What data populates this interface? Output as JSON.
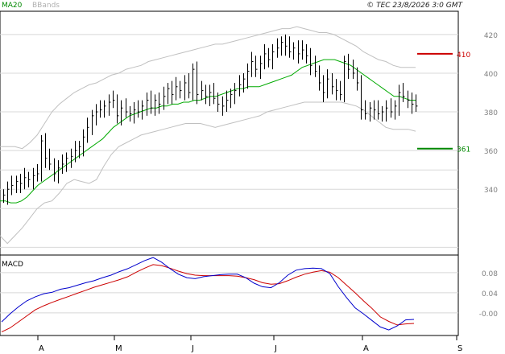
{
  "header": {
    "indicator_ma": "MA20",
    "indicator_bb": "BBands",
    "copyright": "© TEC 23/8/2026 3:0 GMT"
  },
  "colors": {
    "price_bar": "#000000",
    "ma": "#00aa00",
    "bbands": "#c0c0c0",
    "resistance": "#cc0000",
    "support": "#008800",
    "macd_line": "#0000cc",
    "macd_signal": "#cc0000",
    "grid": "#d8d8d8",
    "axis_text": "#808080"
  },
  "chart_data": [
    {
      "type": "line",
      "panel": "price",
      "description_note": "",
      "y_ticks": [
        340,
        360,
        380,
        400,
        420
      ],
      "ylim": [
        306,
        432
      ],
      "x_ticks": [
        "A",
        "M",
        "J",
        "J",
        "A",
        "S"
      ],
      "levels": [
        {
          "label": "410",
          "value": 410,
          "color": "resistance"
        },
        {
          "label": "361",
          "value": 361,
          "color": "support"
        }
      ],
      "series": [
        {
          "name": "price",
          "style": "ohlc",
          "close": [
            337,
            340,
            342,
            344,
            343,
            346,
            345,
            347,
            348,
            365,
            356,
            353,
            348,
            351,
            353,
            356,
            357,
            360,
            362,
            367,
            372,
            378,
            380,
            381,
            383,
            385,
            386,
            378,
            382,
            380,
            379,
            381,
            380,
            383,
            386,
            382,
            386,
            384,
            388,
            392,
            389,
            393,
            391,
            395,
            390,
            402,
            389,
            391,
            388,
            390,
            387,
            384,
            383,
            386,
            389,
            391,
            394,
            397,
            401,
            406,
            402,
            405,
            410,
            407,
            411,
            413,
            416,
            414,
            411,
            413,
            410,
            412,
            409,
            404,
            401,
            395,
            390,
            397,
            393,
            391,
            389,
            406,
            402,
            400,
            395,
            381,
            379,
            382,
            381,
            379,
            380,
            382,
            380,
            383,
            390,
            388,
            386,
            384,
            383
          ]
        },
        {
          "name": "MA20",
          "values": [
            334,
            334,
            333,
            333,
            334,
            336,
            339,
            342,
            344,
            346,
            348,
            350,
            352,
            354,
            356,
            358,
            360,
            362,
            364,
            366,
            369,
            372,
            374,
            376,
            378,
            379,
            380,
            381,
            382,
            382,
            383,
            383,
            384,
            384,
            385,
            385,
            386,
            386,
            387,
            388,
            388,
            389,
            390,
            391,
            392,
            392,
            393,
            393,
            393,
            394,
            395,
            396,
            397,
            398,
            399,
            401,
            403,
            404,
            405,
            406,
            407,
            407,
            407,
            406,
            405,
            404,
            402,
            400,
            398,
            396,
            394,
            392,
            390,
            388,
            388,
            387,
            386,
            386
          ]
        },
        {
          "name": "BBands",
          "upper": [
            362,
            362,
            362,
            361,
            364,
            368,
            374,
            380,
            384,
            387,
            390,
            392,
            394,
            395,
            397,
            399,
            400,
            402,
            403,
            404,
            406,
            407,
            408,
            409,
            410,
            411,
            412,
            413,
            414,
            415,
            415,
            416,
            417,
            418,
            419,
            420,
            421,
            422,
            423,
            423,
            424,
            423,
            422,
            421,
            421,
            420,
            418,
            416,
            414,
            411,
            409,
            407,
            406,
            404,
            403,
            403,
            403
          ],
          "lower": [
            316,
            312,
            316,
            320,
            325,
            330,
            333,
            334,
            338,
            343,
            345,
            344,
            343,
            345,
            352,
            358,
            362,
            364,
            366,
            368,
            369,
            370,
            371,
            372,
            373,
            374,
            374,
            374,
            373,
            372,
            373,
            374,
            375,
            376,
            377,
            378,
            380,
            381,
            382,
            383,
            384,
            385,
            385,
            385,
            385,
            385,
            385,
            384,
            383,
            381,
            378,
            375,
            372,
            371,
            371,
            371,
            370
          ]
        }
      ]
    },
    {
      "type": "line",
      "title": "MACD",
      "panel": "macd",
      "y_ticks": [
        "0.08",
        "0.04",
        "-0.00"
      ],
      "ylim": [
        -0.045,
        0.115
      ],
      "series": [
        {
          "name": "MACD",
          "values": [
            -0.018,
            -0.002,
            0.012,
            0.024,
            0.032,
            0.038,
            0.041,
            0.047,
            0.05,
            0.055,
            0.06,
            0.064,
            0.07,
            0.075,
            0.082,
            0.088,
            0.096,
            0.104,
            0.11,
            0.101,
            0.088,
            0.077,
            0.07,
            0.068,
            0.072,
            0.074,
            0.076,
            0.077,
            0.077,
            0.07,
            0.059,
            0.052,
            0.05,
            0.06,
            0.075,
            0.085,
            0.088,
            0.089,
            0.088,
            0.078,
            0.052,
            0.03,
            0.01,
            -0.002,
            -0.015,
            -0.028,
            -0.034,
            -0.026,
            -0.014,
            -0.013
          ]
        },
        {
          "name": "Signal",
          "values": [
            -0.038,
            -0.03,
            -0.018,
            -0.006,
            0.006,
            0.014,
            0.021,
            0.027,
            0.033,
            0.039,
            0.045,
            0.051,
            0.056,
            0.061,
            0.066,
            0.072,
            0.081,
            0.089,
            0.096,
            0.094,
            0.089,
            0.083,
            0.078,
            0.075,
            0.074,
            0.074,
            0.074,
            0.074,
            0.073,
            0.07,
            0.066,
            0.06,
            0.057,
            0.058,
            0.064,
            0.071,
            0.077,
            0.081,
            0.084,
            0.081,
            0.07,
            0.055,
            0.04,
            0.024,
            0.009,
            -0.008,
            -0.017,
            -0.024,
            -0.022,
            -0.021
          ]
        }
      ]
    }
  ]
}
